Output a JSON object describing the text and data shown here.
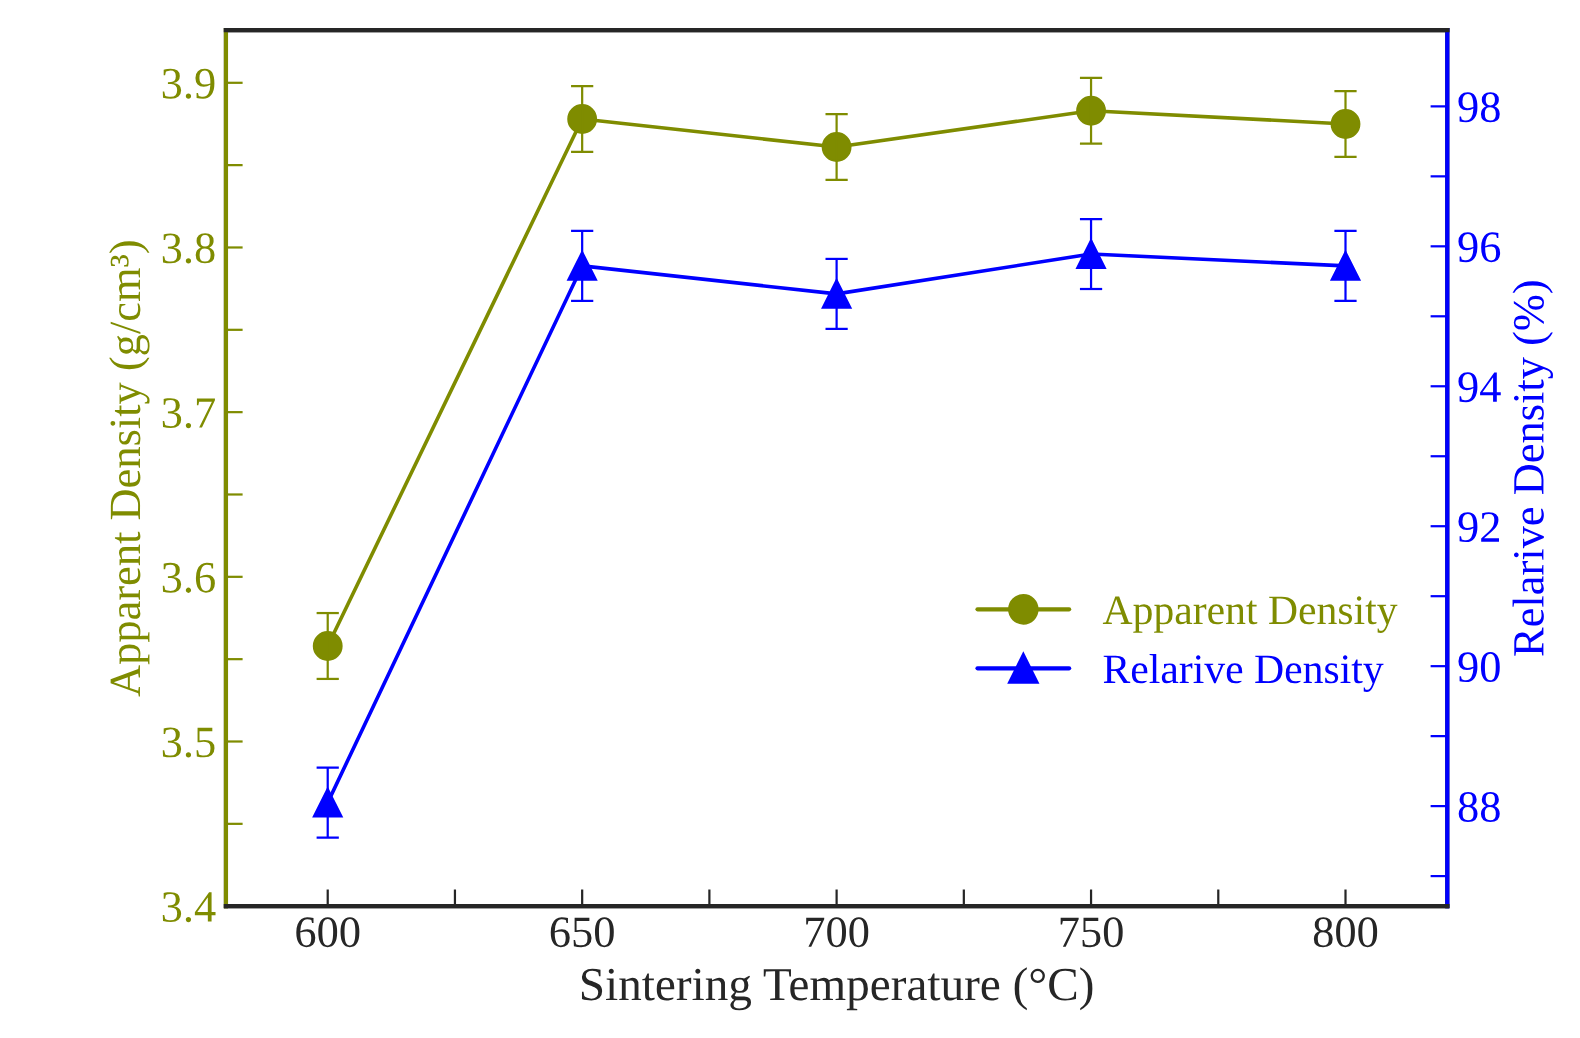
{
  "chart_data": {
    "type": "line",
    "xlabel": "Sintering Temperature (°C)",
    "ylabel": "Apparent Density (g/cm³)",
    "y2label": "Relarive Density (%)",
    "x": [
      600,
      650,
      700,
      750,
      800
    ],
    "series": [
      {
        "name": "Apparent Density",
        "color": "#7f8c00",
        "values": [
          3.558,
          3.878,
          3.861,
          3.883,
          3.875
        ],
        "errors": [
          0.02,
          0.02,
          0.02,
          0.02,
          0.02
        ],
        "marker": "circle"
      },
      {
        "name": "Relarive Density",
        "color": "#0000ff",
        "axis": "y2",
        "values": [
          88.05,
          95.72,
          95.32,
          95.89,
          95.72
        ],
        "errors": [
          0.5,
          0.5,
          0.5,
          0.5,
          0.5
        ],
        "marker": "triangle"
      }
    ],
    "xlim": [
      580,
      820
    ],
    "xticks": [
      600,
      {
        "value": 625,
        "label": null
      },
      650,
      {
        "value": 675,
        "label": null
      },
      700,
      {
        "value": 725,
        "label": null
      },
      750,
      {
        "value": 775,
        "label": null
      },
      800
    ],
    "ylim": [
      3.4,
      3.932
    ],
    "yticks": [
      3.4,
      {
        "value": 3.45,
        "label": null
      },
      3.5,
      {
        "value": 3.55,
        "label": null
      },
      3.6,
      {
        "value": 3.65,
        "label": null
      },
      3.7,
      {
        "value": 3.75,
        "label": null
      },
      3.8,
      {
        "value": 3.85,
        "label": null
      },
      3.9
    ],
    "y2lim": [
      86.57,
      99.09
    ],
    "y2ticks": [
      {
        "value": 87,
        "label": null
      },
      88,
      {
        "value": 89,
        "label": null
      },
      90,
      {
        "value": 91,
        "label": null
      },
      92,
      {
        "value": 93,
        "label": null
      },
      94,
      {
        "value": 95,
        "label": null
      },
      96,
      {
        "value": 97,
        "label": null
      },
      98
    ],
    "legend": "right",
    "grid": false,
    "line_style": "solid"
  }
}
